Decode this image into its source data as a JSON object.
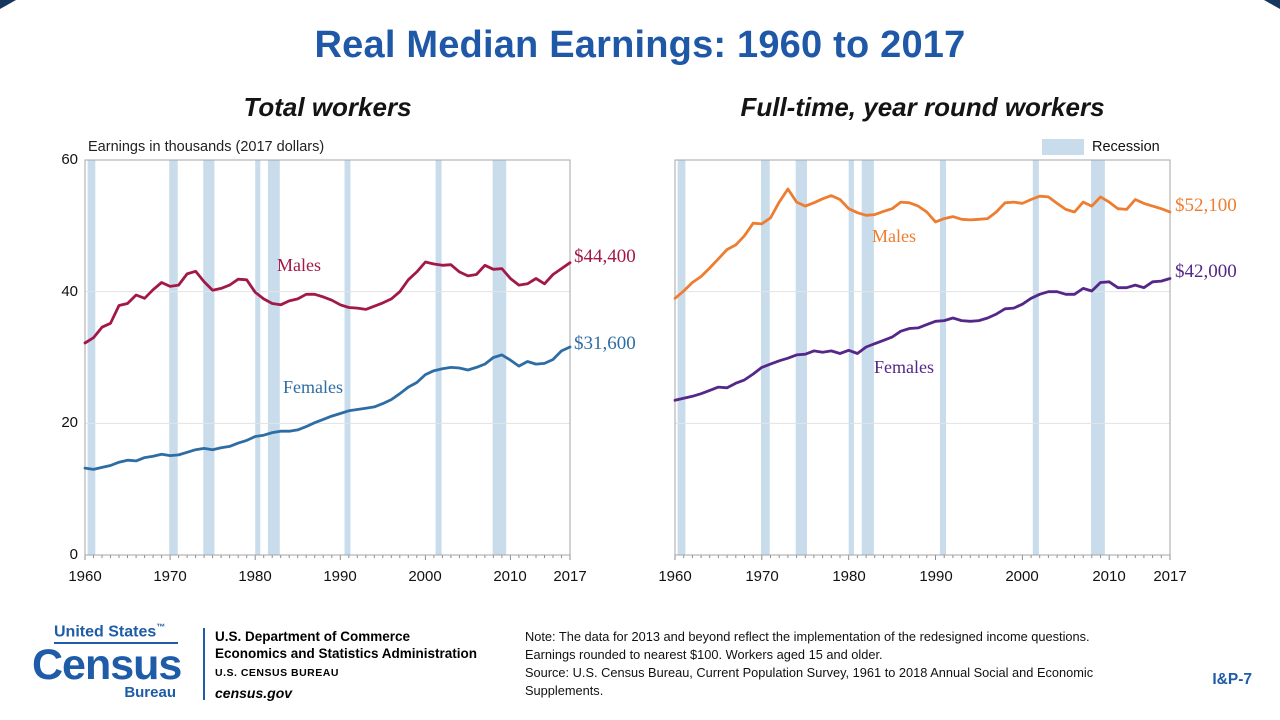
{
  "slide": {
    "title": "Real Median Earnings: 1960 to 2017",
    "page_label": "I&P-7"
  },
  "legend": {
    "recession_label": "Recession",
    "recession_color": "#C9DCEC"
  },
  "chart_data": [
    {
      "type": "line",
      "title": "Total workers",
      "ylabel": "Earnings in thousands (2017 dollars)",
      "ylim": [
        0,
        60
      ],
      "y_ticks": [
        0,
        20,
        40,
        60
      ],
      "x_ticks": [
        1960,
        1970,
        1980,
        1990,
        2000,
        2010,
        2017
      ],
      "grid": "horizontal",
      "x": [
        1960,
        1961,
        1962,
        1963,
        1964,
        1965,
        1966,
        1967,
        1968,
        1969,
        1970,
        1971,
        1972,
        1973,
        1974,
        1975,
        1976,
        1977,
        1978,
        1979,
        1980,
        1981,
        1982,
        1983,
        1984,
        1985,
        1986,
        1987,
        1988,
        1989,
        1990,
        1991,
        1992,
        1993,
        1994,
        1995,
        1996,
        1997,
        1998,
        1999,
        2000,
        2001,
        2002,
        2003,
        2004,
        2005,
        2006,
        2007,
        2008,
        2009,
        2010,
        2011,
        2012,
        2013,
        2014,
        2015,
        2016,
        2017
      ],
      "series": [
        {
          "name": "Males",
          "color": "#A21846",
          "end_label": "$44,400",
          "values": [
            32.2,
            33.0,
            34.6,
            35.2,
            37.9,
            38.2,
            39.5,
            39.0,
            40.3,
            41.4,
            40.8,
            41.0,
            42.7,
            43.1,
            41.5,
            40.2,
            40.5,
            41.0,
            41.9,
            41.8,
            39.9,
            38.9,
            38.2,
            38.0,
            38.6,
            38.9,
            39.6,
            39.6,
            39.2,
            38.7,
            38.0,
            37.6,
            37.5,
            37.3,
            37.8,
            38.3,
            38.9,
            40.0,
            41.8,
            43.0,
            44.5,
            44.2,
            44.0,
            44.1,
            43.0,
            42.4,
            42.6,
            44.0,
            43.4,
            43.5,
            42.0,
            41.0,
            41.2,
            42.0,
            41.2,
            42.6,
            43.5,
            44.4
          ]
        },
        {
          "name": "Females",
          "color": "#2E6DA4",
          "end_label": "$31,600",
          "values": [
            13.2,
            13.0,
            13.3,
            13.6,
            14.1,
            14.4,
            14.3,
            14.8,
            15.0,
            15.3,
            15.1,
            15.2,
            15.6,
            16.0,
            16.2,
            16.0,
            16.3,
            16.5,
            17.0,
            17.4,
            18.0,
            18.2,
            18.6,
            18.8,
            18.8,
            19.0,
            19.5,
            20.1,
            20.6,
            21.1,
            21.5,
            21.9,
            22.1,
            22.3,
            22.5,
            23.0,
            23.6,
            24.5,
            25.5,
            26.2,
            27.4,
            28.0,
            28.3,
            28.5,
            28.4,
            28.1,
            28.5,
            29.0,
            30.0,
            30.4,
            29.6,
            28.7,
            29.4,
            29.0,
            29.1,
            29.7,
            31.0,
            31.6
          ]
        }
      ],
      "recessions": [
        [
          1960.3,
          1961.2
        ],
        [
          1969.9,
          1970.9
        ],
        [
          1973.9,
          1975.2
        ],
        [
          1980.0,
          1980.6
        ],
        [
          1981.5,
          1982.9
        ],
        [
          1990.5,
          1991.2
        ],
        [
          2001.2,
          2001.9
        ],
        [
          2007.9,
          2009.5
        ]
      ]
    },
    {
      "type": "line",
      "title": "Full-time, year round workers",
      "ylabel": "",
      "ylim": [
        0,
        60
      ],
      "y_ticks": [
        0,
        20,
        40,
        60
      ],
      "x_ticks": [
        1960,
        1970,
        1980,
        1990,
        2000,
        2010,
        2017
      ],
      "grid": "horizontal",
      "legend_position": "top-right",
      "x": [
        1960,
        1961,
        1962,
        1963,
        1964,
        1965,
        1966,
        1967,
        1968,
        1969,
        1970,
        1971,
        1972,
        1973,
        1974,
        1975,
        1976,
        1977,
        1978,
        1979,
        1980,
        1981,
        1982,
        1983,
        1984,
        1985,
        1986,
        1987,
        1988,
        1989,
        1990,
        1991,
        1992,
        1993,
        1994,
        1995,
        1996,
        1997,
        1998,
        1999,
        2000,
        2001,
        2002,
        2003,
        2004,
        2005,
        2006,
        2007,
        2008,
        2009,
        2010,
        2011,
        2012,
        2013,
        2014,
        2015,
        2016,
        2017
      ],
      "series": [
        {
          "name": "Males",
          "color": "#ED7D31",
          "end_label": "$52,100",
          "values": [
            39.0,
            40.1,
            41.4,
            42.3,
            43.6,
            45.0,
            46.4,
            47.1,
            48.5,
            50.4,
            50.3,
            51.2,
            53.6,
            55.6,
            53.6,
            53.0,
            53.5,
            54.1,
            54.6,
            54.0,
            52.6,
            52.0,
            51.6,
            51.7,
            52.2,
            52.6,
            53.6,
            53.5,
            53.0,
            52.1,
            50.6,
            51.1,
            51.4,
            51.0,
            50.9,
            51.0,
            51.1,
            52.1,
            53.5,
            53.6,
            53.4,
            54.0,
            54.5,
            54.4,
            53.4,
            52.5,
            52.1,
            53.6,
            53.0,
            54.4,
            53.6,
            52.6,
            52.5,
            54.0,
            53.4,
            53.0,
            52.6,
            52.1
          ]
        },
        {
          "name": "Females",
          "color": "#542788",
          "end_label": "$42,000",
          "values": [
            23.5,
            23.8,
            24.1,
            24.5,
            25.0,
            25.5,
            25.4,
            26.1,
            26.6,
            27.5,
            28.5,
            29.0,
            29.5,
            29.9,
            30.4,
            30.5,
            31.0,
            30.8,
            31.0,
            30.6,
            31.1,
            30.6,
            31.6,
            32.1,
            32.6,
            33.1,
            34.0,
            34.4,
            34.5,
            35.0,
            35.5,
            35.6,
            36.0,
            35.6,
            35.5,
            35.6,
            36.0,
            36.6,
            37.4,
            37.5,
            38.1,
            39.0,
            39.6,
            40.0,
            40.0,
            39.6,
            39.6,
            40.5,
            40.1,
            41.4,
            41.5,
            40.6,
            40.6,
            41.0,
            40.6,
            41.5,
            41.6,
            42.0
          ]
        }
      ],
      "recessions": [
        [
          1960.3,
          1961.2
        ],
        [
          1969.9,
          1970.9
        ],
        [
          1973.9,
          1975.2
        ],
        [
          1980.0,
          1980.6
        ],
        [
          1981.5,
          1982.9
        ],
        [
          1990.5,
          1991.2
        ],
        [
          2001.2,
          2001.9
        ],
        [
          2007.9,
          2009.5
        ]
      ]
    }
  ],
  "footer": {
    "logo": {
      "united_states": "United States",
      "tm": "™",
      "census": "Census",
      "bureau": "Bureau"
    },
    "agency_lines": [
      "U.S. Department of Commerce",
      "Economics and Statistics Administration",
      "U.S. CENSUS BUREAU",
      "census.gov"
    ],
    "note_lines": [
      "Note: The data for 2013 and beyond reflect the implementation of the redesigned income questions.",
      "Earnings rounded to nearest $100.  Workers aged 15 and older.",
      "Source: U.S. Census Bureau, Current Population Survey, 1961 to 2018 Annual Social and Economic",
      "Supplements."
    ]
  }
}
